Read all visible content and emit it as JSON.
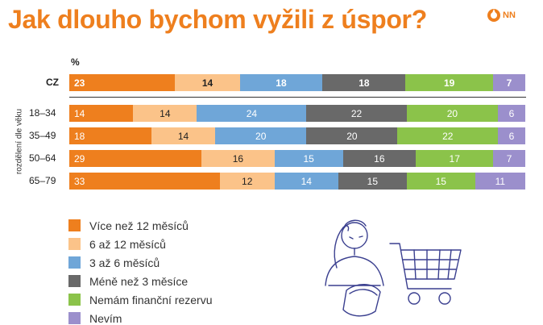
{
  "title": "Jak dlouho bychom vyžili z úspor?",
  "logo": {
    "text": "NN",
    "color": "#ee7f1e"
  },
  "chart_data": {
    "type": "bar",
    "orientation": "horizontal",
    "stacked": true,
    "percent_label": "%",
    "group_axis_label": "rozdělení dle věku",
    "categories": [
      "CZ",
      "18–34",
      "35–49",
      "50–64",
      "65–79"
    ],
    "series": [
      {
        "name": "Více než 12 měsíců",
        "color": "#ee7f1e",
        "values": [
          23,
          14,
          18,
          29,
          33
        ]
      },
      {
        "name": "6 až 12 měsíců",
        "color": "#fbc389",
        "values": [
          14,
          14,
          14,
          16,
          12
        ]
      },
      {
        "name": "3 až 6 měsíců",
        "color": "#6fa6d8",
        "values": [
          18,
          24,
          20,
          15,
          14
        ]
      },
      {
        "name": "Méně než 3 měsíce",
        "color": "#696969",
        "values": [
          18,
          22,
          20,
          16,
          15
        ]
      },
      {
        "name": "Nemám finanční rezervu",
        "color": "#8bc34a",
        "values": [
          19,
          20,
          22,
          17,
          15
        ]
      },
      {
        "name": "Nevím",
        "color": "#9b8fcc",
        "values": [
          7,
          6,
          6,
          7,
          11
        ]
      }
    ],
    "legend_position": "bottom-left"
  }
}
